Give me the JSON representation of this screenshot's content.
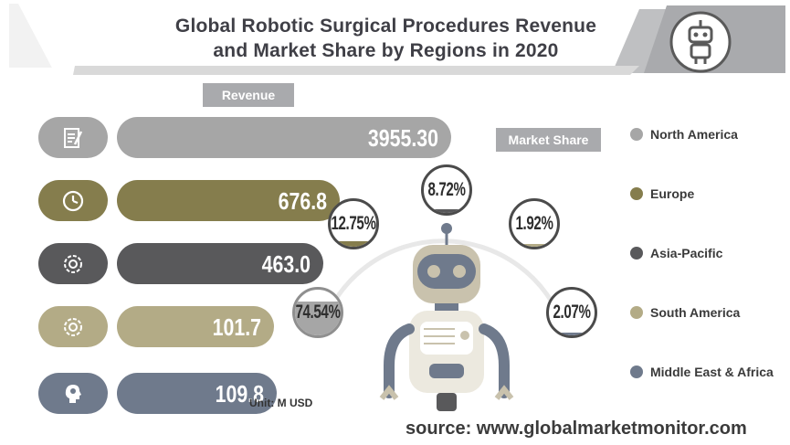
{
  "title": {
    "line1": "Global Robotic Surgical Procedures Revenue",
    "line2": "and Market Share by Regions in 2020"
  },
  "revenue_label": "Revenue",
  "market_share_label": "Market Share",
  "unit": "Unit: M USD",
  "source": "source: www.globalmarketmonitor.com",
  "colors": {
    "north_america": "#a6a6a6",
    "europe": "#857d4d",
    "asia_pacific": "#59595b",
    "south_america": "#b3ab86",
    "middle_east_africa": "#6f7a8c"
  },
  "icons": [
    "document-pen-icon",
    "clock-icon",
    "gear-arrows-icon",
    "gear-arrows-icon",
    "head-gear-icon"
  ],
  "chart_data": {
    "type": "bar",
    "orientation": "horizontal",
    "categories": [
      "North America",
      "Europe",
      "Asia-Pacific",
      "South America",
      "Middle East & Africa"
    ],
    "values": [
      3955.3,
      676.8,
      463.0,
      101.7,
      109.8
    ],
    "value_labels": [
      "3955.30",
      "676.8",
      "463.0",
      "101.7",
      "109.8"
    ],
    "legend": [
      "North America",
      "Europe",
      "Asia-Pacific",
      "South America",
      "Middle East & Africa"
    ],
    "legend_position": "right",
    "market_share": {
      "type": "pie",
      "categories": [
        "North America",
        "Europe",
        "Asia-Pacific",
        "South America",
        "Middle East & Africa"
      ],
      "values": [
        74.54,
        12.75,
        8.72,
        1.92,
        2.07
      ],
      "labels": [
        "74.54%",
        "12.75%",
        "8.72%",
        "1.92%",
        "2.07%"
      ]
    }
  }
}
